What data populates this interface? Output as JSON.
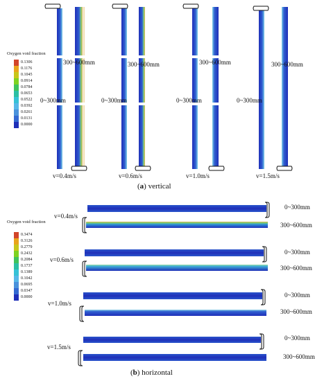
{
  "vertical": {
    "caption_label": "a",
    "caption_text": " vertical",
    "legend": {
      "title": "Oxygen void fraction",
      "values": [
        "0.1306",
        "0.1176",
        "0.1045",
        "0.0914",
        "0.0784",
        "0.0653",
        "0.0522",
        "0.0392",
        "0.0261",
        "0.0131",
        "0.0000"
      ],
      "colors": [
        "#d2452a",
        "#e9a41b",
        "#c8c61a",
        "#7ed321",
        "#3fc35c",
        "#2bbfa3",
        "#36c2d6",
        "#56b8e8",
        "#4a92dc",
        "#3469d2",
        "#1f2fb8"
      ]
    },
    "cases": [
      {
        "velocity": "v=0.4m/s",
        "upper_label": "300~600mm",
        "lower_label": "0~300mm"
      },
      {
        "velocity": "v=0.6m/s",
        "upper_label": "300~600mm",
        "lower_label": "0~300mm"
      },
      {
        "velocity": "v=1.0m/s",
        "upper_label": "300~600mm",
        "lower_label": "0~300mm"
      },
      {
        "velocity": "v=1.5m/s",
        "upper_label": "300~600mm",
        "lower_label": "0~300mm"
      }
    ]
  },
  "horizontal": {
    "caption_label": "b",
    "caption_text": " horizontal",
    "legend": {
      "title": "Oxygen void fraction",
      "values": [
        "0.3474",
        "0.3126",
        "0.2779",
        "0.2432",
        "0.2084",
        "0.1737",
        "0.1389",
        "0.1042",
        "0.0695",
        "0.0347",
        "0.0000"
      ],
      "colors": [
        "#d2452a",
        "#e9a41b",
        "#c8c61a",
        "#7ed321",
        "#3fc35c",
        "#2bbfa3",
        "#36c2d6",
        "#56b8e8",
        "#4a92dc",
        "#3469d2",
        "#1f2fb8"
      ]
    },
    "cases": [
      {
        "velocity": "v=0.4m/s",
        "upper_label": "0~300mm",
        "lower_label": "300~600mm"
      },
      {
        "velocity": "v=0.6m/s",
        "upper_label": "0~300mm",
        "lower_label": "300~600mm"
      },
      {
        "velocity": "v=1.0m/s",
        "upper_label": "0~300mm",
        "lower_label": "300~600mm"
      },
      {
        "velocity": "v=1.5m/s",
        "upper_label": "0~300mm",
        "lower_label": "300~600mm"
      }
    ]
  }
}
